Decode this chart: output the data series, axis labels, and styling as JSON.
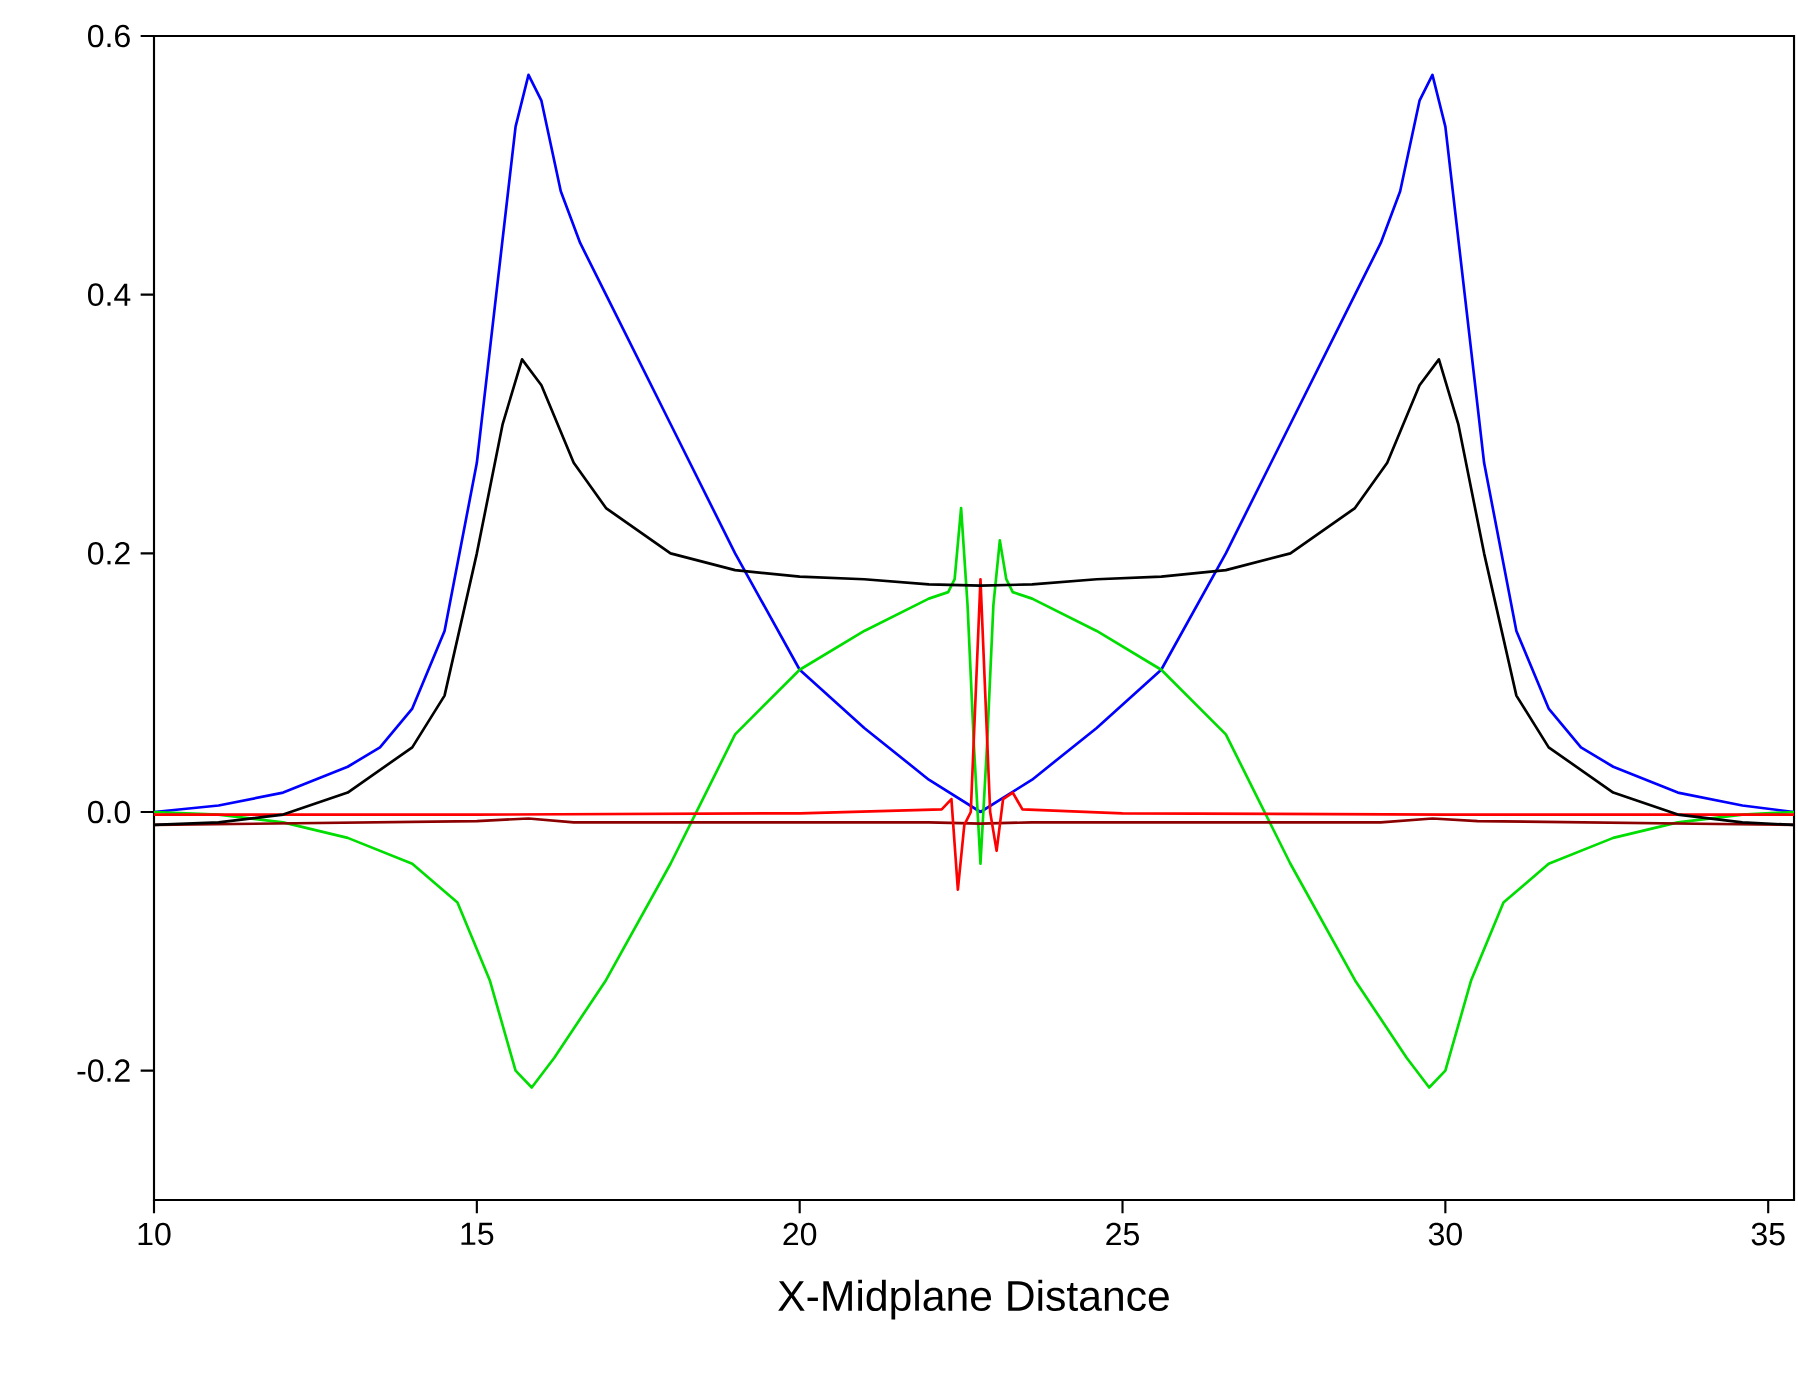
{
  "chart_data": {
    "type": "line",
    "xlabel": "X-Midplane Distance",
    "xlim": [
      10,
      35.4
    ],
    "ylim": [
      -0.3,
      0.6
    ],
    "xticks": [
      10,
      15,
      20,
      25,
      30,
      35
    ],
    "yticks": [
      {
        "value": -0.2,
        "label": "-0.2"
      },
      {
        "value": 0,
        "label": "0.0"
      },
      {
        "value": 0.2,
        "label": "0.2"
      },
      {
        "value": 0.4,
        "label": "0.4"
      },
      {
        "value": 0.6,
        "label": "0.6"
      }
    ],
    "grid": false,
    "marker": "none",
    "line_style": "solid",
    "series": [
      {
        "color": "#0000ff",
        "x": [
          10,
          11,
          12,
          13,
          13.5,
          14,
          14.5,
          15,
          15.3,
          15.6,
          15.8,
          16.0,
          16.3,
          16.6,
          17,
          18,
          19,
          20,
          21,
          22,
          22.8,
          23.6,
          24.6,
          25.6,
          26.6,
          27.6,
          28.6,
          29.0,
          29.3,
          29.6,
          29.8,
          30.0,
          30.3,
          30.6,
          31.1,
          31.6,
          32.1,
          32.6,
          33.6,
          34.6,
          35.4
        ],
        "values": [
          0.0,
          0.005,
          0.015,
          0.035,
          0.05,
          0.08,
          0.14,
          0.27,
          0.4,
          0.53,
          0.57,
          0.55,
          0.48,
          0.44,
          0.4,
          0.3,
          0.2,
          0.11,
          0.065,
          0.025,
          0.0,
          0.025,
          0.065,
          0.11,
          0.2,
          0.3,
          0.4,
          0.44,
          0.48,
          0.55,
          0.57,
          0.53,
          0.4,
          0.27,
          0.14,
          0.08,
          0.05,
          0.035,
          0.015,
          0.005,
          0.0
        ]
      },
      {
        "color": "#00dd00",
        "x": [
          10,
          11,
          12,
          13,
          14,
          14.7,
          15.2,
          15.6,
          15.85,
          16.2,
          17,
          18,
          18.5,
          19,
          20,
          21,
          22,
          22.3,
          22.4,
          22.5,
          22.6,
          22.7,
          22.8,
          22.9,
          23.0,
          23.1,
          23.2,
          23.3,
          23.6,
          24.6,
          25.6,
          26.6,
          27.1,
          27.6,
          28.6,
          29.4,
          29.75,
          30.0,
          30.4,
          30.9,
          31.6,
          32.6,
          33.6,
          34.6,
          35.4
        ],
        "values": [
          0.0,
          -0.002,
          -0.008,
          -0.02,
          -0.04,
          -0.07,
          -0.13,
          -0.2,
          -0.213,
          -0.19,
          -0.13,
          -0.04,
          0.01,
          0.06,
          0.11,
          0.14,
          0.165,
          0.17,
          0.18,
          0.235,
          0.16,
          0.05,
          -0.04,
          0.05,
          0.16,
          0.21,
          0.18,
          0.17,
          0.165,
          0.14,
          0.11,
          0.06,
          0.01,
          -0.04,
          -0.13,
          -0.19,
          -0.213,
          -0.2,
          -0.13,
          -0.07,
          -0.04,
          -0.02,
          -0.008,
          -0.002,
          0.0
        ]
      },
      {
        "color": "#8b0000",
        "x": [
          10,
          15,
          15.8,
          16.5,
          22,
          22.8,
          23.6,
          29,
          29.8,
          30.5,
          35.4
        ],
        "values": [
          -0.01,
          -0.007,
          -0.005,
          -0.008,
          -0.008,
          -0.009,
          -0.008,
          -0.008,
          -0.005,
          -0.007,
          -0.01
        ]
      },
      {
        "color": "#ff0000",
        "x": [
          10,
          15,
          20,
          22.2,
          22.35,
          22.45,
          22.55,
          22.65,
          22.8,
          22.95,
          23.05,
          23.15,
          23.3,
          23.45,
          25,
          30,
          35.4
        ],
        "values": [
          -0.002,
          -0.002,
          -0.001,
          0.002,
          0.01,
          -0.06,
          -0.01,
          0.0,
          0.18,
          0.0,
          -0.03,
          0.01,
          0.015,
          0.002,
          -0.001,
          -0.002,
          -0.002
        ]
      },
      {
        "color": "#000000",
        "x": [
          10,
          11,
          12,
          13,
          14,
          14.5,
          15,
          15.4,
          15.7,
          16.0,
          16.5,
          17,
          18,
          19,
          20,
          21,
          22,
          22.8,
          23.6,
          24.6,
          25.6,
          26.6,
          27.6,
          28.6,
          29.1,
          29.6,
          29.9,
          30.2,
          30.6,
          31.1,
          31.6,
          32.6,
          33.6,
          34.6,
          35.4
        ],
        "values": [
          -0.01,
          -0.008,
          -0.002,
          0.015,
          0.05,
          0.09,
          0.2,
          0.3,
          0.35,
          0.33,
          0.27,
          0.235,
          0.2,
          0.187,
          0.182,
          0.18,
          0.176,
          0.175,
          0.176,
          0.18,
          0.182,
          0.187,
          0.2,
          0.235,
          0.27,
          0.33,
          0.35,
          0.3,
          0.2,
          0.09,
          0.05,
          0.015,
          -0.002,
          -0.008,
          -0.01
        ]
      }
    ]
  }
}
